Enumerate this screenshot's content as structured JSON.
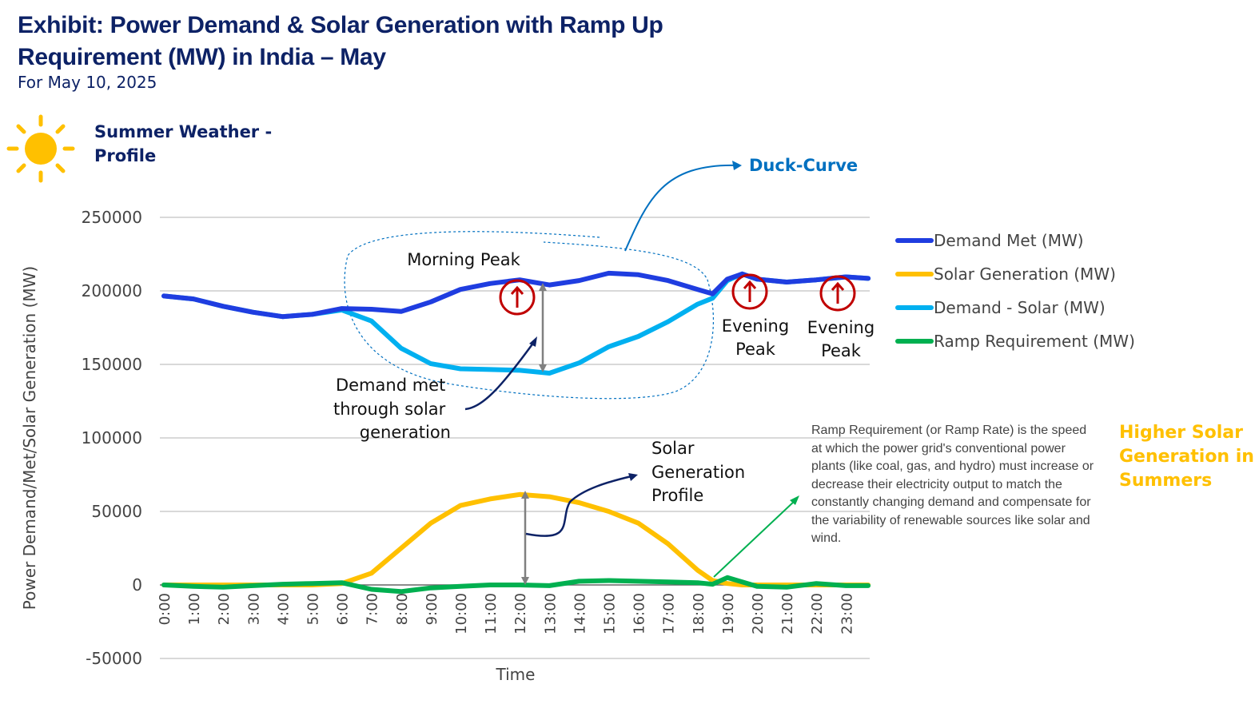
{
  "header": {
    "title": "Exhibit: Power Demand & Solar Generation with Ramp Up Requirement (MW) in India – May",
    "subtitle": "For May 10, 2025",
    "weather_label": "Summer Weather - Profile",
    "weather_icon": "sun-icon"
  },
  "annotations": {
    "duck_curve": "Duck-Curve",
    "morning_peak": "Morning Peak",
    "evening_peak_1": "Evening Peak",
    "evening_peak_2": "Evening Peak",
    "demand_met_solar": [
      "Demand met",
      "through solar",
      "generation"
    ],
    "solar_profile": [
      "Solar",
      "Generation",
      "Profile"
    ],
    "ramp_note": "Ramp Requirement (or Ramp Rate) is the speed at which the power grid's conventional power plants (like coal, gas, and hydro) must increase or decrease their electricity output to match the constantly changing demand and compensate for the variability of renewable sources like solar and wind.",
    "higher_solar": "Higher Solar Generation in Summers",
    "peak_icon": "arrow-up-circle-icon"
  },
  "chart_data": {
    "type": "line",
    "xlabel": "Time",
    "ylabel": "Power Demand/Met/Solar Generation (MW)",
    "ylim": [
      -50000,
      250000
    ],
    "yticks": [
      -50000,
      0,
      50000,
      100000,
      150000,
      200000,
      250000
    ],
    "xticks": [
      "0:00",
      "1:00",
      "2:00",
      "3:00",
      "4:00",
      "5:00",
      "6:00",
      "7:00",
      "8:00",
      "9:00",
      "10:00",
      "11:00",
      "12:00",
      "13:00",
      "14:00",
      "15:00",
      "16:00",
      "17:00",
      "18:00",
      "19:00",
      "20:00",
      "21:00",
      "22:00",
      "23:00"
    ],
    "grid": true,
    "legend_position": "right",
    "x": [
      "0:00",
      "1:00",
      "2:00",
      "3:00",
      "4:00",
      "5:00",
      "6:00",
      "7:00",
      "8:00",
      "9:00",
      "10:00",
      "11:00",
      "12:00",
      "13:00",
      "14:00",
      "15:00",
      "16:00",
      "17:00",
      "18:00",
      "18:30",
      "19:00",
      "19:30",
      "20:00",
      "21:00",
      "22:00",
      "23:00",
      "23:45"
    ],
    "series": [
      {
        "name": "Demand Met (MW)",
        "color": "#1f3de0",
        "values": [
          196500,
          194500,
          189500,
          185500,
          182500,
          184000,
          188000,
          187500,
          186000,
          192500,
          201000,
          205000,
          207500,
          204000,
          207000,
          212000,
          211000,
          207000,
          201000,
          198000,
          208000,
          211500,
          208000,
          206000,
          207500,
          209500,
          208500
        ]
      },
      {
        "name": "Solar Generation (MW)",
        "color": "#ffc000",
        "values": [
          0,
          0,
          0,
          0,
          0,
          0,
          1000,
          8000,
          25000,
          42000,
          54000,
          58500,
          61500,
          60000,
          56000,
          50000,
          42000,
          28000,
          10000,
          3000,
          1000,
          0,
          0,
          0,
          0,
          0,
          0
        ]
      },
      {
        "name": "Demand - Solar (MW)",
        "color": "#00b0f0",
        "values": [
          196500,
          194500,
          189500,
          185500,
          182500,
          184000,
          187000,
          179500,
          161000,
          150500,
          147000,
          146500,
          146000,
          144000,
          151000,
          162000,
          169000,
          179000,
          191000,
          195000,
          207000,
          211500,
          208000,
          206000,
          207500,
          209500,
          208500
        ]
      },
      {
        "name": "Ramp Requirement (MW)",
        "color": "#00b050",
        "values": [
          0,
          -1000,
          -1500,
          -500,
          500,
          1000,
          1500,
          -3000,
          -4500,
          -2000,
          -1000,
          0,
          0,
          -500,
          2500,
          3000,
          2500,
          2000,
          1500,
          500,
          5000,
          2000,
          -1000,
          -1500,
          1000,
          -500,
          -500
        ]
      }
    ]
  }
}
